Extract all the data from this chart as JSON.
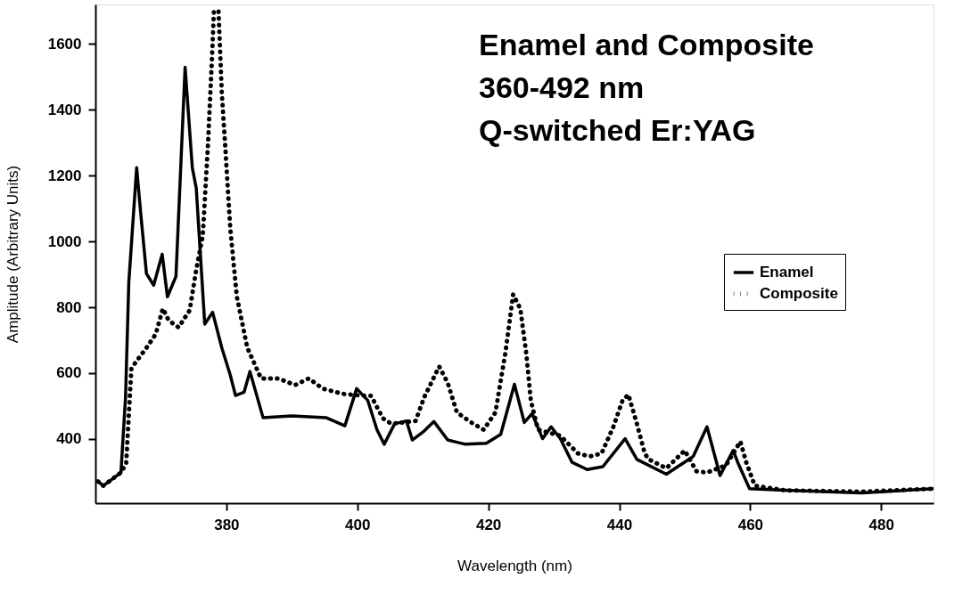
{
  "chart_data": {
    "type": "line",
    "xlabel": "Wavelength (nm)",
    "ylabel": "Amplitude (Arbitrary Units)",
    "annotations": [
      "Enamel and Composite",
      "360-492 nm",
      "Q-switched Er:YAG"
    ],
    "xlim": [
      360,
      488
    ],
    "ylim": [
      205,
      1720
    ],
    "xticks": [
      380,
      400,
      420,
      440,
      460,
      480
    ],
    "yticks": [
      400,
      600,
      800,
      1000,
      1200,
      1400,
      1600
    ],
    "grid": false,
    "legend": "right",
    "marker": "none",
    "series": [
      {
        "name": "Enamel",
        "color": "#000000",
        "line_style": "solid",
        "x": [
          360.4,
          361.2,
          362.1,
          363.9,
          364.6,
          365.1,
          366.3,
          366.9,
          367.8,
          368.9,
          370.2,
          371.0,
          372.3,
          373.7,
          374.8,
          375.4,
          376.7,
          377.9,
          379.3,
          380.6,
          381.4,
          382.7,
          383.6,
          385.6,
          390,
          395.2,
          398.1,
          399.9,
          401.6,
          403,
          404.1,
          405.7,
          407.5,
          408.4,
          410.2,
          411.7,
          413.8,
          416.5,
          419.7,
          421.9,
          424,
          425.5,
          426.7,
          428.3,
          429.6,
          431,
          432.8,
          435.1,
          437.5,
          440.9,
          442.7,
          447.2,
          451.3,
          453.4,
          455.4,
          457.4,
          458.1,
          459.9,
          465.3,
          477,
          488
        ],
        "values": [
          271,
          258,
          271,
          298,
          526,
          875,
          1224,
          1090,
          902,
          867,
          961,
          832,
          894,
          1529,
          1224,
          1162,
          749,
          785,
          677,
          594,
          532,
          542,
          605,
          465,
          470,
          465,
          440,
          553,
          517,
          428,
          384,
          446,
          455,
          397,
          424,
          453,
          397,
          384,
          387,
          414,
          566,
          450,
          477,
          401,
          437,
          401,
          329,
          307,
          316,
          401,
          338,
          293,
          347,
          437,
          289,
          365,
          329,
          249,
          244,
          236,
          249
        ]
      },
      {
        "name": "Composite",
        "color": "#000000",
        "line_style": "dotted",
        "x": [
          360.4,
          361.2,
          362.1,
          363.9,
          364.7,
          365.5,
          367.8,
          369.2,
          370.3,
          371.2,
          372.7,
          374.4,
          375.4,
          376.4,
          377.2,
          377.8,
          378.1,
          378.8,
          379.3,
          379.8,
          380.6,
          381.6,
          383.2,
          385.3,
          387.9,
          390.5,
          392.6,
          394.7,
          397.8,
          400.4,
          402.1,
          403.9,
          405.2,
          408.9,
          410.2,
          412.5,
          413.8,
          415.2,
          417.4,
          419.3,
          421.1,
          422.6,
          423.8,
          424.9,
          425.8,
          426.5,
          427.6,
          431,
          433.7,
          435.5,
          437.3,
          439.1,
          440.5,
          441.4,
          442.7,
          443.9,
          444.5,
          447.2,
          450,
          451.8,
          453.4,
          456.3,
          458.5,
          459.4,
          460.7,
          465.3,
          477,
          488
        ],
        "values": [
          271,
          258,
          271,
          298,
          326,
          615,
          677,
          718,
          796,
          760,
          739,
          791,
          914,
          1018,
          1297,
          1554,
          1700,
          1700,
          1452,
          1297,
          1039,
          832,
          677,
          584,
          584,
          564,
          584,
          553,
          537,
          532,
          531,
          463,
          446,
          455,
          526,
          620,
          571,
          481,
          450,
          428,
          481,
          660,
          839,
          795,
          660,
          517,
          428,
          410,
          356,
          347,
          356,
          437,
          517,
          535,
          446,
          356,
          338,
          311,
          365,
          302,
          298,
          320,
          392,
          329,
          258,
          244,
          240,
          249
        ]
      }
    ]
  }
}
